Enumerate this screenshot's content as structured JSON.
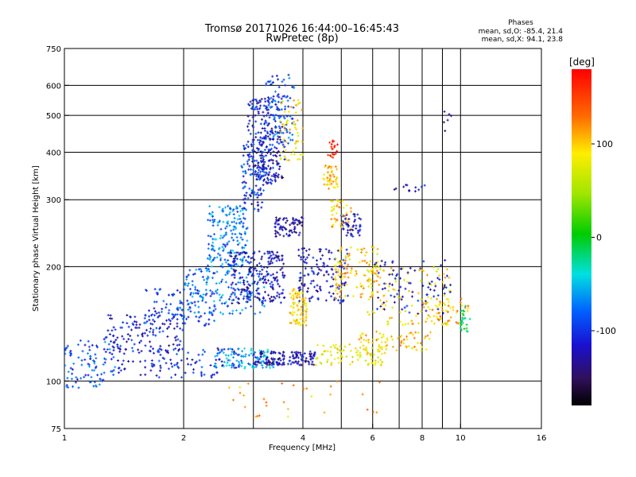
{
  "chart_data": {
    "type": "scatter",
    "title": "Tromsø 20171026 16:44:00–16:45:43",
    "subtitle": "RwPretec (8p)",
    "xlabel": "Frequency [MHz]",
    "ylabel": "Stationary phase Virtual Height [km]",
    "x_scale": "log",
    "y_scale": "log",
    "xlim": [
      1,
      16
    ],
    "ylim": [
      75,
      750
    ],
    "grid": true,
    "x_ticks": [
      1,
      2,
      4,
      6,
      8,
      10,
      16
    ],
    "x_tick_labels": [
      "1",
      "2",
      "4",
      "6",
      "8",
      "10",
      "16"
    ],
    "x_grid": [
      2,
      3,
      4,
      5,
      6,
      7,
      8,
      9,
      10
    ],
    "y_ticks": [
      75,
      100,
      200,
      300,
      400,
      500,
      600,
      750
    ],
    "y_tick_labels": [
      "75",
      "100",
      "200",
      "300",
      "400",
      "500",
      "600",
      "750"
    ],
    "y_grid": [
      100,
      200,
      300,
      400,
      500,
      600
    ],
    "stats": {
      "heading": "Phases",
      "line_o": "mean, sd,O: -85.4, 21.4",
      "line_x": "mean, sd,X: 94.1, 23.8"
    },
    "colorbar": {
      "label": "[deg]",
      "range": [
        -180,
        180
      ],
      "ticks": [
        100,
        0,
        -100
      ],
      "tick_labels": [
        "100",
        "0",
        "-100"
      ]
    },
    "clusters": [
      {
        "f": [
          1.0,
          1.35
        ],
        "h": [
          96,
          128
        ],
        "phase": -90,
        "n": 90
      },
      {
        "f": [
          1.25,
          2.0
        ],
        "h": [
          118,
          150
        ],
        "phase": -110,
        "n": 140
      },
      {
        "f": [
          1.6,
          2.4
        ],
        "h": [
          140,
          175
        ],
        "phase": -100,
        "n": 100
      },
      {
        "f": [
          1.3,
          2.8
        ],
        "h": [
          102,
          122
        ],
        "phase": -105,
        "n": 120
      },
      {
        "f": [
          2.4,
          3.4
        ],
        "h": [
          108,
          122
        ],
        "phase": -60,
        "n": 90
      },
      {
        "f": [
          3.0,
          4.3
        ],
        "h": [
          110,
          120
        ],
        "phase": -125,
        "n": 140
      },
      {
        "f": [
          4.3,
          6.5
        ],
        "h": [
          110,
          125
        ],
        "phase": 80,
        "n": 90
      },
      {
        "f": [
          5.5,
          8.5
        ],
        "h": [
          120,
          135
        ],
        "phase": 100,
        "n": 70
      },
      {
        "f": [
          2.0,
          3.2
        ],
        "h": [
          150,
          200
        ],
        "phase": -75,
        "n": 160
      },
      {
        "f": [
          2.3,
          2.9
        ],
        "h": [
          200,
          290
        ],
        "phase": -70,
        "n": 180
      },
      {
        "f": [
          2.6,
          3.6
        ],
        "h": [
          160,
          220
        ],
        "phase": -120,
        "n": 220
      },
      {
        "f": [
          2.9,
          3.5
        ],
        "h": [
          330,
          560
        ],
        "phase": -110,
        "n": 200
      },
      {
        "f": [
          2.8,
          3.2
        ],
        "h": [
          280,
          420
        ],
        "phase": -100,
        "n": 100
      },
      {
        "f": [
          3.2,
          3.8
        ],
        "h": [
          420,
          640
        ],
        "phase": -90,
        "n": 100
      },
      {
        "f": [
          3.5,
          4.0
        ],
        "h": [
          380,
          550
        ],
        "phase": 90,
        "n": 55
      },
      {
        "f": [
          3.0,
          3.6
        ],
        "h": [
          340,
          480
        ],
        "phase": -130,
        "n": 60
      },
      {
        "f": [
          3.4,
          4.0
        ],
        "h": [
          240,
          270
        ],
        "phase": -125,
        "n": 70
      },
      {
        "f": [
          3.7,
          4.1
        ],
        "h": [
          140,
          175
        ],
        "phase": 95,
        "n": 80
      },
      {
        "f": [
          3.9,
          5.2
        ],
        "h": [
          160,
          225
        ],
        "phase": -120,
        "n": 130
      },
      {
        "f": [
          4.8,
          6.2
        ],
        "h": [
          165,
          230
        ],
        "phase": 100,
        "n": 110
      },
      {
        "f": [
          5.0,
          5.6
        ],
        "h": [
          240,
          275
        ],
        "phase": -120,
        "n": 50
      },
      {
        "f": [
          4.7,
          5.3
        ],
        "h": [
          250,
          300
        ],
        "phase": 105,
        "n": 40
      },
      {
        "f": [
          4.5,
          4.9
        ],
        "h": [
          320,
          370
        ],
        "phase": 100,
        "n": 45
      },
      {
        "f": [
          4.6,
          4.9
        ],
        "h": [
          385,
          430
        ],
        "phase": 170,
        "n": 20
      },
      {
        "f": [
          5.8,
          9.5
        ],
        "h": [
          140,
          200
        ],
        "phase": 90,
        "n": 120
      },
      {
        "f": [
          6.0,
          9.5
        ],
        "h": [
          150,
          210
        ],
        "phase": -120,
        "n": 80
      },
      {
        "f": [
          8.0,
          10.5
        ],
        "h": [
          140,
          165
        ],
        "phase": 110,
        "n": 40
      },
      {
        "f": [
          10.0,
          10.6
        ],
        "h": [
          135,
          160
        ],
        "phase": -10,
        "n": 25
      },
      {
        "f": [
          6.8,
          8.2
        ],
        "h": [
          315,
          330
        ],
        "phase": -120,
        "n": 12
      },
      {
        "f": [
          9.0,
          9.5
        ],
        "h": [
          440,
          520
        ],
        "phase": -120,
        "n": 6
      },
      {
        "f": [
          2.6,
          6.5
        ],
        "h": [
          80,
          100
        ],
        "phase": 110,
        "n": 30
      }
    ]
  }
}
